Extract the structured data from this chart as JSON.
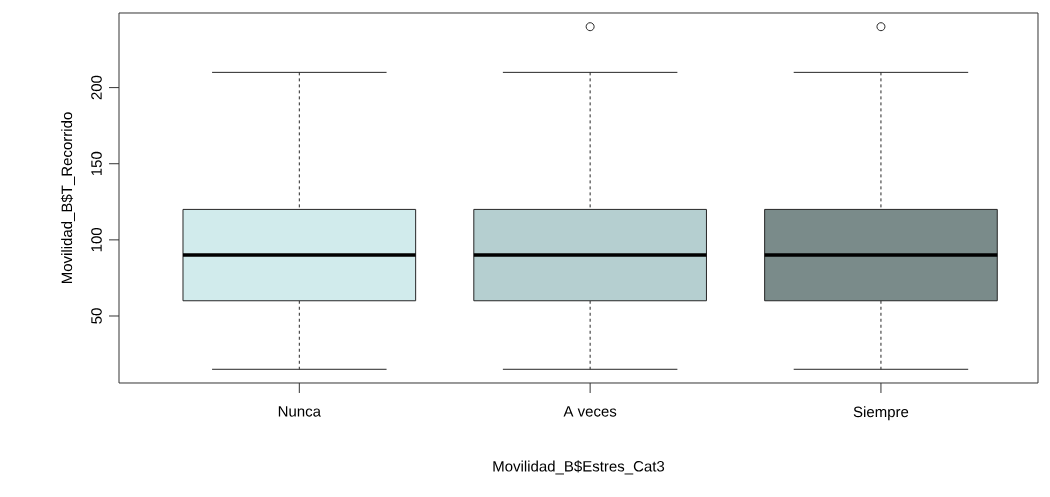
{
  "chart_data": {
    "type": "box",
    "xlabel": "Movilidad_B$Estres_Cat3",
    "ylabel": "Movilidad_B$T_Recorrido",
    "categories": [
      "Nunca",
      "A veces",
      "Siempre"
    ],
    "colors": [
      "#d1ebec",
      "#b5cfd0",
      "#7a8b8a"
    ],
    "boxes": [
      {
        "low": 15,
        "q1": 60,
        "median": 90,
        "q3": 120,
        "high": 210
      },
      {
        "low": 15,
        "q1": 60,
        "median": 90,
        "q3": 120,
        "high": 210,
        "outliers": [
          240
        ]
      },
      {
        "low": 15,
        "q1": 60,
        "median": 90,
        "q3": 120,
        "high": 210,
        "outliers": [
          240
        ]
      }
    ],
    "ylim": [
      6,
      249
    ],
    "yticks": [
      50,
      100,
      150,
      200
    ]
  }
}
